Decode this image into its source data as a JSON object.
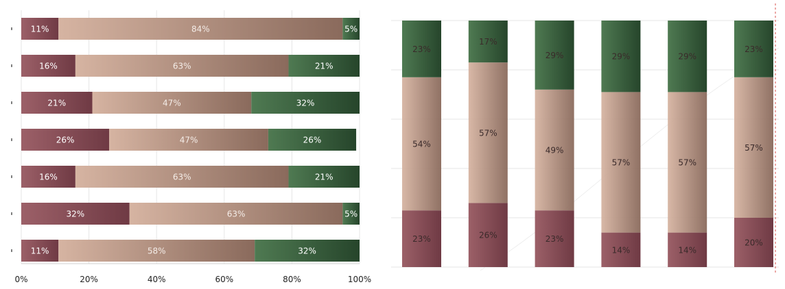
{
  "colors": {
    "low": [
      "#9c6068",
      "#6f3a44"
    ],
    "mid": [
      "#d6b4a2",
      "#8a6a5c"
    ],
    "high": [
      "#4f7a52",
      "#26452b"
    ],
    "grid": "#e6e6e6",
    "accent_line": "#d9534f"
  },
  "chart_data": [
    {
      "type": "bar",
      "orientation": "horizontal",
      "stacked": true,
      "xlim": [
        0,
        100
      ],
      "x_ticks": [
        "0%",
        "20%",
        "40%",
        "60%",
        "80%",
        "100%"
      ],
      "grid": true,
      "categories": [
        "",
        "",
        "",
        "",
        "",
        "",
        ""
      ],
      "series": [
        {
          "values": [
            11,
            16,
            21,
            26,
            16,
            32,
            11
          ]
        },
        {
          "values": [
            84,
            63,
            47,
            47,
            63,
            63,
            58
          ]
        },
        {
          "values": [
            5,
            21,
            32,
            26,
            21,
            5,
            32
          ]
        }
      ]
    },
    {
      "type": "bar",
      "orientation": "vertical",
      "stacked": true,
      "ylim": [
        0,
        100
      ],
      "grid": true,
      "categories": [
        "",
        "",
        "",
        "",
        "",
        ""
      ],
      "series": [
        {
          "values": [
            23,
            26,
            23,
            14,
            14,
            20
          ]
        },
        {
          "values": [
            54,
            57,
            49,
            57,
            57,
            57
          ]
        },
        {
          "values": [
            23,
            17,
            29,
            29,
            29,
            23
          ]
        }
      ]
    }
  ]
}
